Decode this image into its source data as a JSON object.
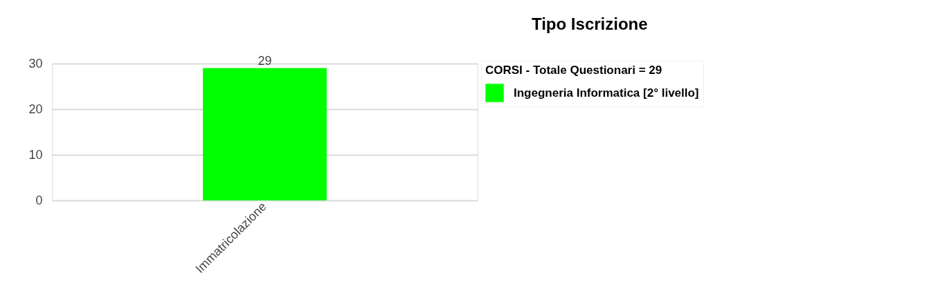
{
  "chart_data": {
    "type": "bar",
    "title": "Tipo Iscrizione",
    "categories": [
      "Immatricolazione"
    ],
    "series": [
      {
        "name": "Ingegneria Informatica [2° livello]",
        "color": "#00ff00",
        "values": [
          29
        ]
      }
    ],
    "legend_title": "CORSI - Totale Questionari = 29",
    "legend": "top right",
    "ylim": [
      0,
      30
    ],
    "yticks": [
      0,
      10,
      20,
      30
    ],
    "grid": "y",
    "data_labels": true
  }
}
